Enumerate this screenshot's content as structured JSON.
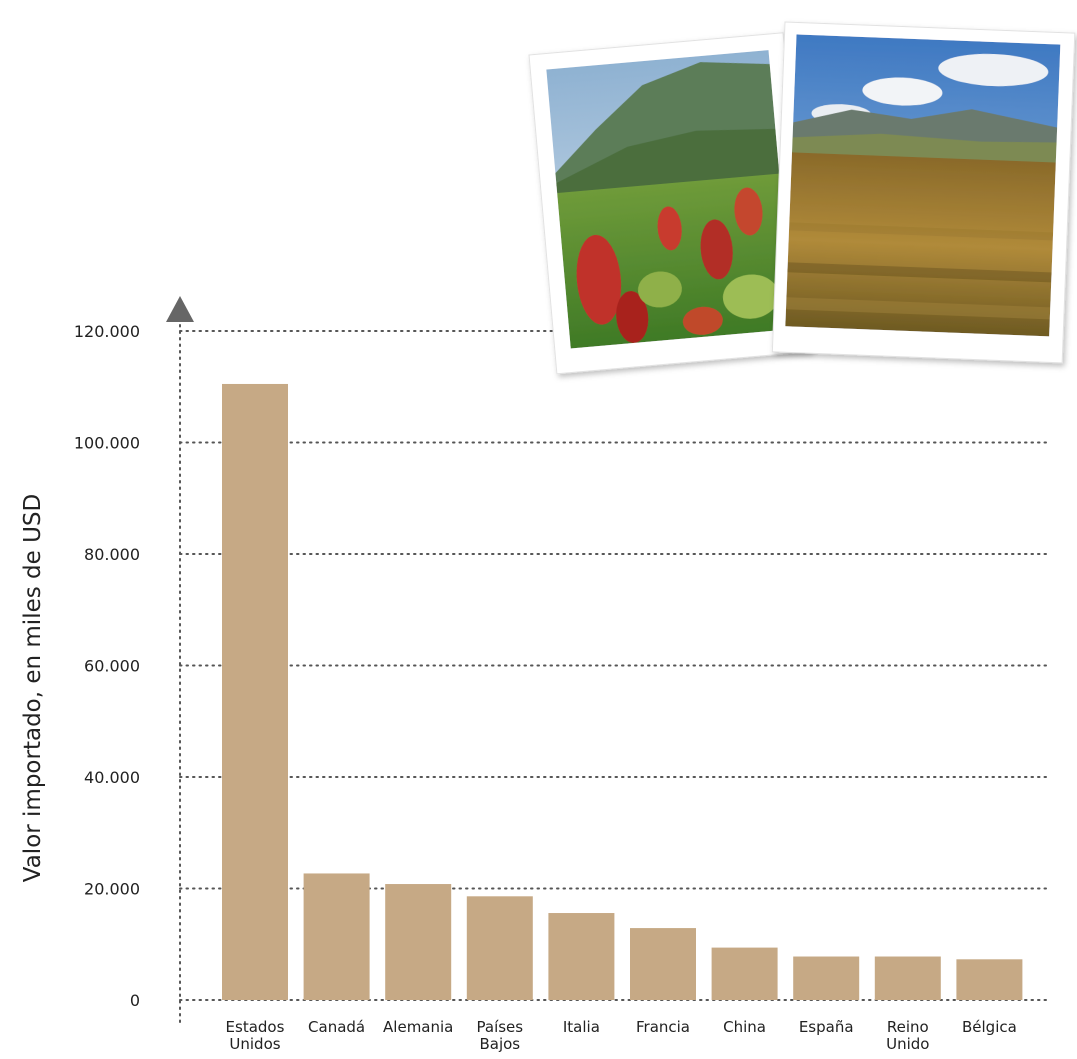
{
  "chart_data": {
    "type": "bar",
    "ylabel": "Valor importado, en miles de USD",
    "xlabel": "",
    "ylim": [
      0,
      120000
    ],
    "yticks": [
      0,
      20000,
      40000,
      60000,
      80000,
      100000,
      120000
    ],
    "ytick_labels": [
      "0",
      "20.000",
      "40.000",
      "60.000",
      "80.000",
      "100.000",
      "120.000"
    ],
    "grid": true,
    "categories": [
      [
        "Estados",
        "Unidos"
      ],
      [
        "Canadá"
      ],
      [
        "Alemania"
      ],
      [
        "Países",
        "Bajos"
      ],
      [
        "Italia"
      ],
      [
        "Francia"
      ],
      [
        "China"
      ],
      [
        "España"
      ],
      [
        "Reino",
        "Unido"
      ],
      [
        "Bélgica"
      ]
    ],
    "values": [
      110500,
      22700,
      20800,
      18600,
      15600,
      12900,
      9400,
      7800,
      7800,
      7300
    ],
    "colors": {
      "bar": "#c6a985",
      "grid": "#555555",
      "axis": "#555555",
      "text": "#222222",
      "arrow": "#666666"
    },
    "photos": [
      {
        "name": "quinoa-field-red-photo"
      },
      {
        "name": "quinoa-field-golden-photo"
      }
    ]
  }
}
